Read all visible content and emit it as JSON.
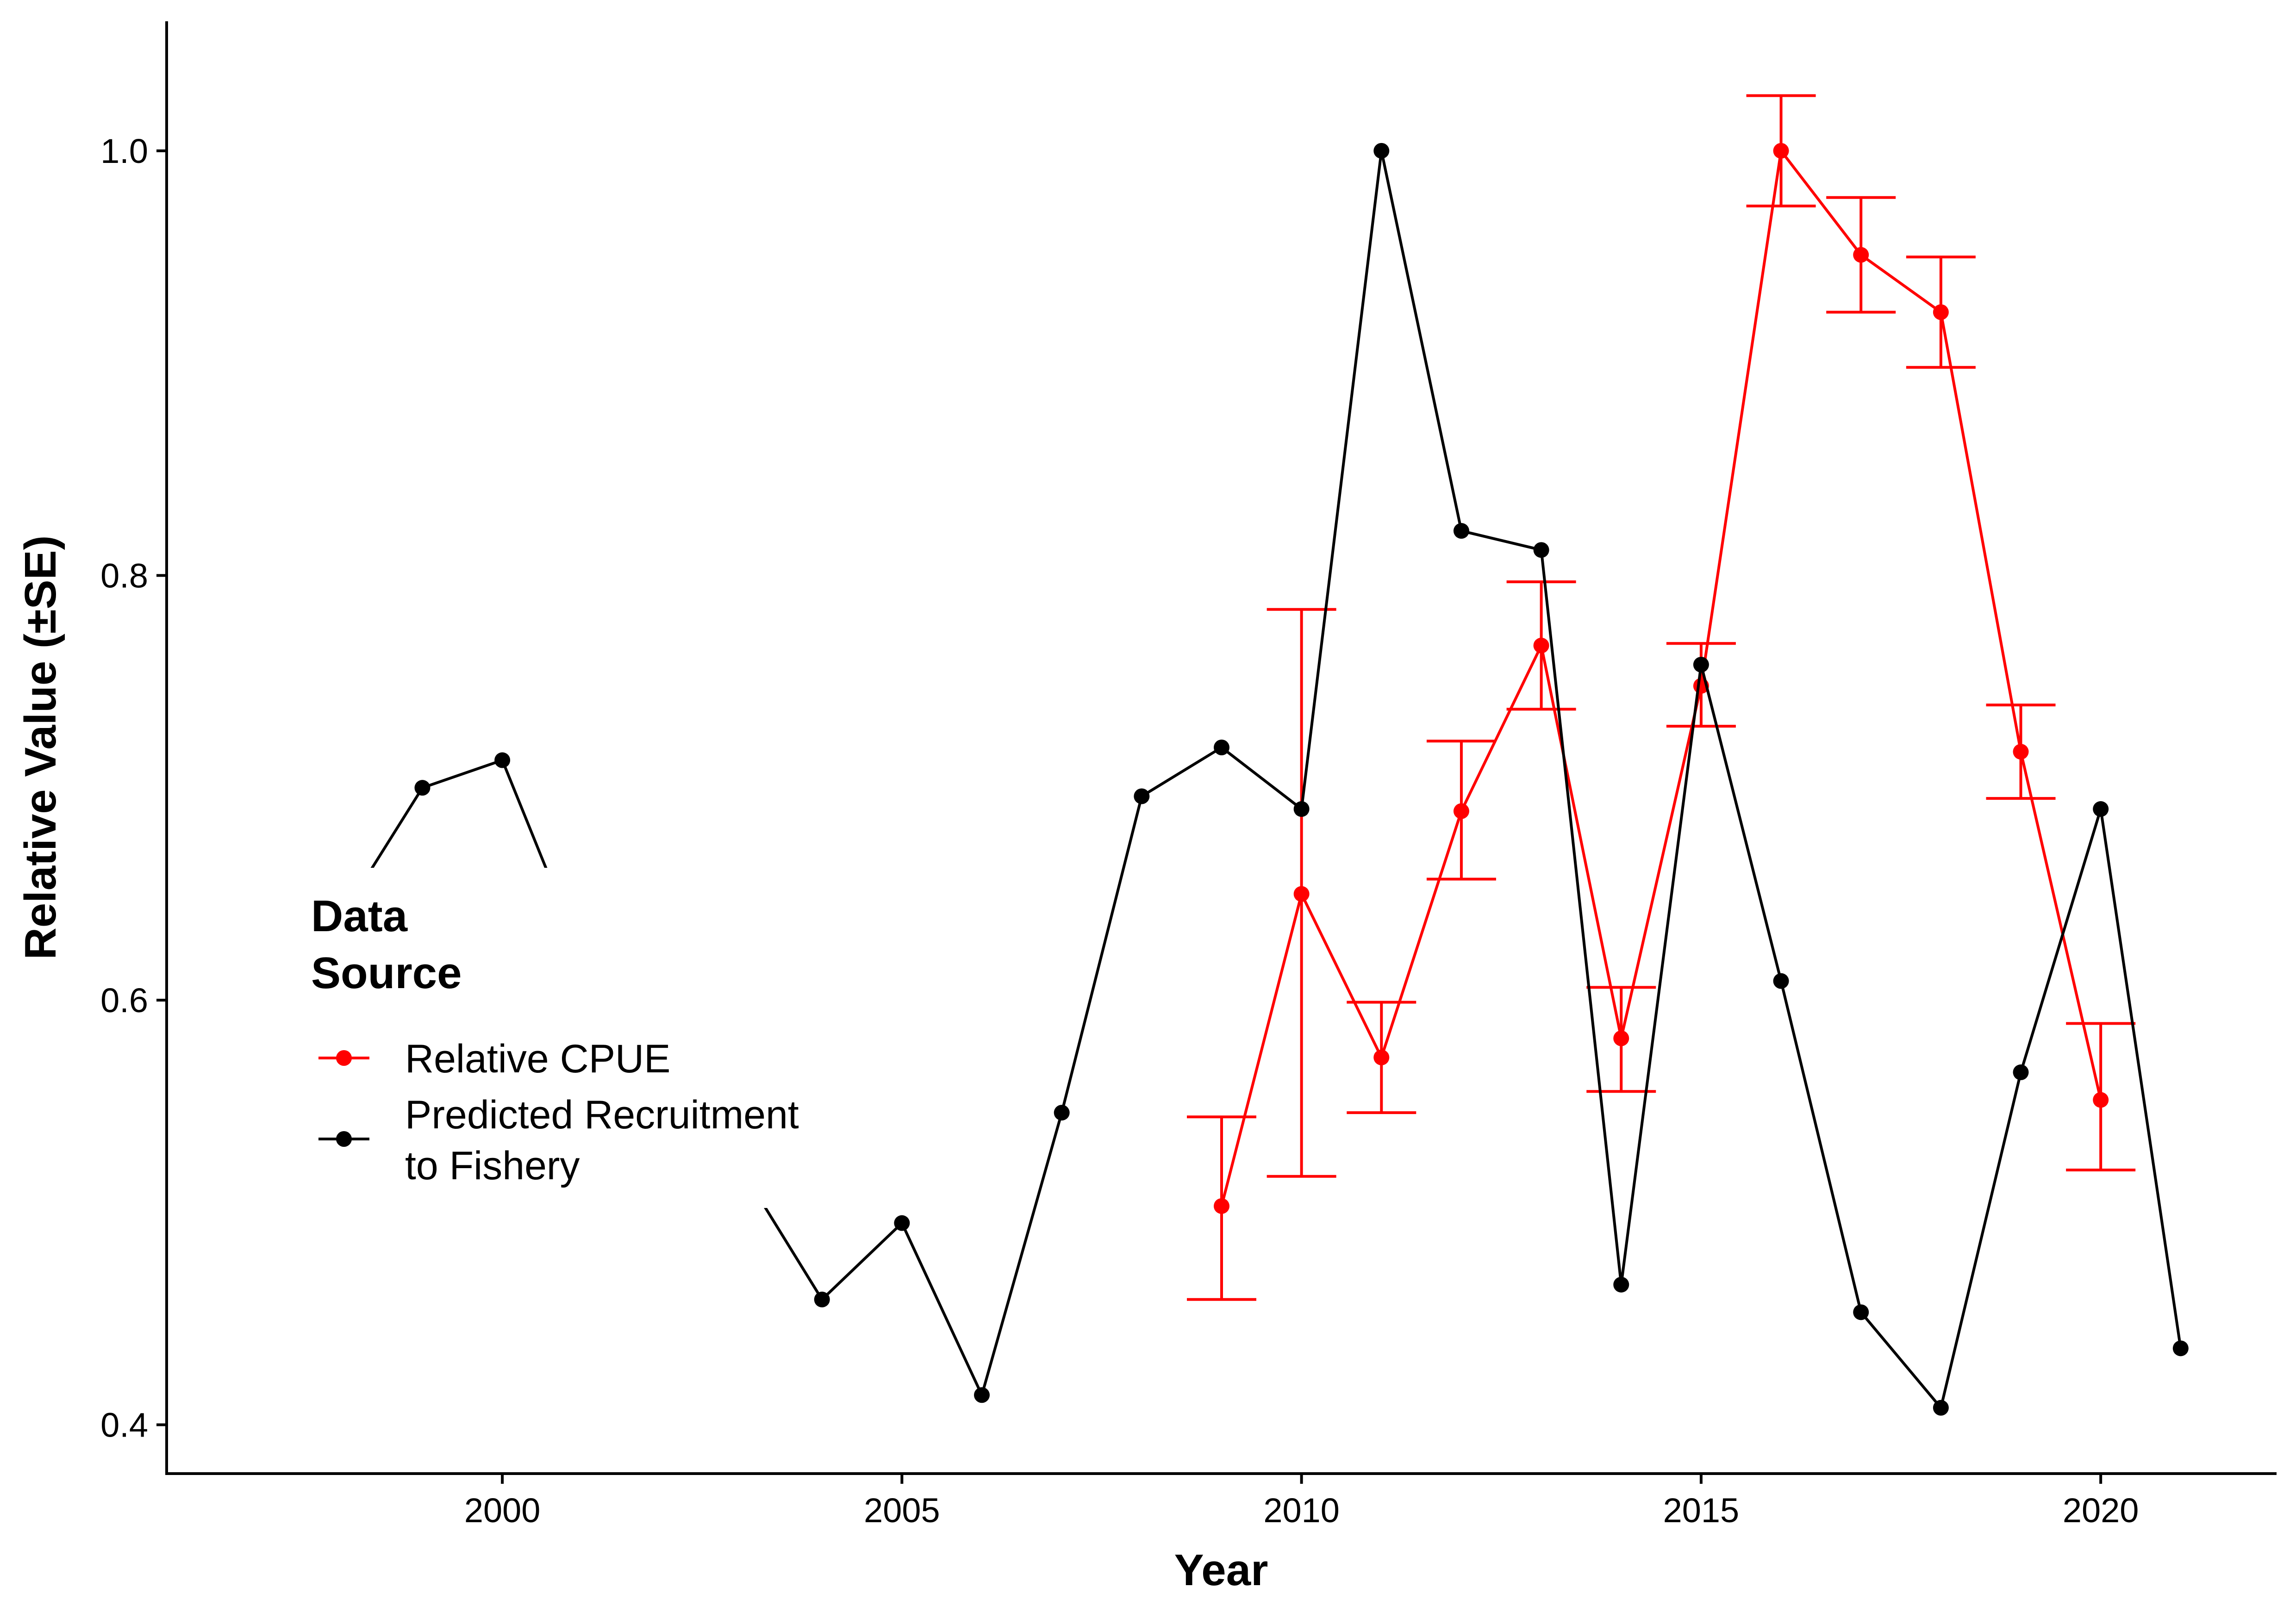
{
  "chart_data": {
    "type": "line",
    "xlabel": "Year",
    "ylabel": "Relative Value (±SE)",
    "xlim": [
      1995.8,
      2022.2
    ],
    "ylim": [
      0.377,
      1.061
    ],
    "xticks": [
      2000,
      2005,
      2010,
      2015,
      2020
    ],
    "xtick_labels": [
      "2000",
      "2005",
      "2010",
      "2015",
      "2020"
    ],
    "yticks": [
      0.4,
      0.6,
      0.8,
      1.0
    ],
    "ytick_labels": [
      "0.4",
      "0.6",
      "0.8",
      "1.0"
    ],
    "grid": false,
    "legend": {
      "title_lines": [
        "Data",
        "Source"
      ],
      "position": "left",
      "entries": [
        {
          "lines": [
            "Relative CPUE"
          ],
          "color": "#ff0000"
        },
        {
          "lines": [
            "Predicted Recruitment",
            "to Fishery"
          ],
          "color": "#000000"
        }
      ]
    },
    "series": [
      {
        "name": "Relative CPUE",
        "color": "#ff0000",
        "x": [
          2009,
          2010,
          2011,
          2012,
          2013,
          2014,
          2015,
          2016,
          2017,
          2018,
          2019,
          2020
        ],
        "y": [
          0.503,
          0.65,
          0.573,
          0.689,
          0.767,
          0.582,
          0.748,
          1.0,
          0.951,
          0.924,
          0.717,
          0.553
        ],
        "ymin": [
          0.459,
          0.517,
          0.547,
          0.657,
          0.737,
          0.557,
          0.729,
          0.974,
          0.924,
          0.898,
          0.695,
          0.52
        ],
        "ymax": [
          0.545,
          0.784,
          0.599,
          0.722,
          0.797,
          0.606,
          0.768,
          1.026,
          0.978,
          0.95,
          0.739,
          0.589
        ]
      },
      {
        "name": "Predicted Recruitment to Fishery",
        "color": "#000000",
        "x": [
          1998,
          1999,
          2000,
          2001,
          2002,
          2003,
          2004,
          2005,
          2006,
          2007,
          2008,
          2009,
          2010,
          2011,
          2012,
          2013,
          2014,
          2015,
          2016,
          2017,
          2018,
          2019,
          2020,
          2021
        ],
        "y": [
          0.64,
          0.7,
          0.713,
          0.62,
          0.56,
          0.52,
          0.459,
          0.495,
          0.414,
          0.547,
          0.696,
          0.719,
          0.69,
          1.0,
          0.821,
          0.812,
          0.466,
          0.758,
          0.609,
          0.453,
          0.408,
          0.566,
          0.69,
          0.436
        ]
      }
    ]
  }
}
